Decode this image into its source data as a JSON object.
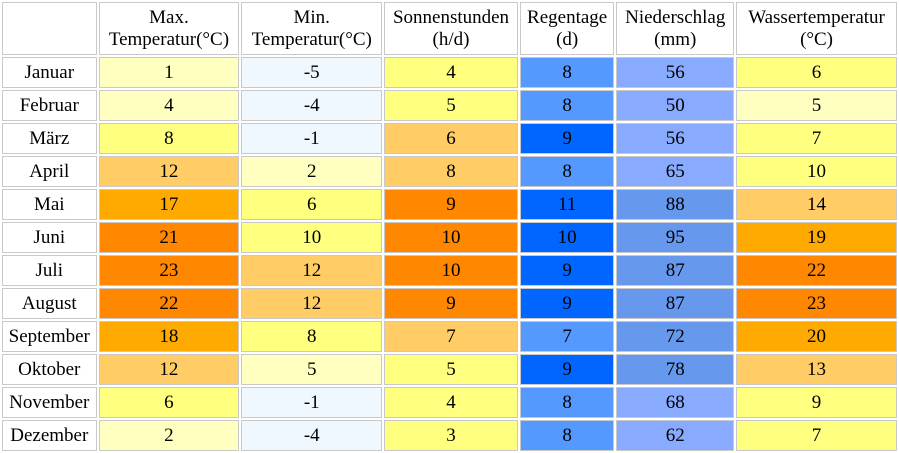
{
  "headers": [
    {
      "line1": "Max.",
      "line2": "Temperatur(°C)"
    },
    {
      "line1": "Min.",
      "line2": "Temperatur(°C)"
    },
    {
      "line1": "Sonnenstunden",
      "line2": "(h/d)"
    },
    {
      "line1": "Regentage",
      "line2": "(d)"
    },
    {
      "line1": "Niederschlag",
      "line2": "(mm)"
    },
    {
      "line1": "Wassertemperatur",
      "line2": "(°C)"
    }
  ],
  "rows": [
    {
      "month": "Januar",
      "values": [
        "1",
        "-5",
        "4",
        "8",
        "56",
        "6"
      ],
      "colors": [
        "#ffffc0",
        "#f0f8ff",
        "#ffff80",
        "#5599ff",
        "#88aaff",
        "#ffff80"
      ]
    },
    {
      "month": "Februar",
      "values": [
        "4",
        "-4",
        "5",
        "8",
        "50",
        "5"
      ],
      "colors": [
        "#ffffc0",
        "#f0f8ff",
        "#ffff80",
        "#5599ff",
        "#88aaff",
        "#ffffc0"
      ]
    },
    {
      "month": "März",
      "values": [
        "8",
        "-1",
        "6",
        "9",
        "56",
        "7"
      ],
      "colors": [
        "#ffff80",
        "#f0f8ff",
        "#ffcc66",
        "#0066ff",
        "#88aaff",
        "#ffff80"
      ]
    },
    {
      "month": "April",
      "values": [
        "12",
        "2",
        "8",
        "8",
        "65",
        "10"
      ],
      "colors": [
        "#ffcc66",
        "#ffffc0",
        "#ffcc66",
        "#5599ff",
        "#88aaff",
        "#ffff80"
      ]
    },
    {
      "month": "Mai",
      "values": [
        "17",
        "6",
        "9",
        "11",
        "88",
        "14"
      ],
      "colors": [
        "#ffaa00",
        "#ffff80",
        "#ff8800",
        "#0066ff",
        "#6699ee",
        "#ffcc66"
      ]
    },
    {
      "month": "Juni",
      "values": [
        "21",
        "10",
        "10",
        "10",
        "95",
        "19"
      ],
      "colors": [
        "#ff8800",
        "#ffff80",
        "#ff8800",
        "#0066ff",
        "#6699ee",
        "#ffaa00"
      ]
    },
    {
      "month": "Juli",
      "values": [
        "23",
        "12",
        "10",
        "9",
        "87",
        "22"
      ],
      "colors": [
        "#ff8800",
        "#ffcc66",
        "#ff8800",
        "#0066ff",
        "#6699ee",
        "#ff8800"
      ]
    },
    {
      "month": "August",
      "values": [
        "22",
        "12",
        "9",
        "9",
        "87",
        "23"
      ],
      "colors": [
        "#ff8800",
        "#ffcc66",
        "#ff8800",
        "#0066ff",
        "#6699ee",
        "#ff8800"
      ]
    },
    {
      "month": "September",
      "values": [
        "18",
        "8",
        "7",
        "7",
        "72",
        "20"
      ],
      "colors": [
        "#ffaa00",
        "#ffff80",
        "#ffcc66",
        "#5599ff",
        "#6699ee",
        "#ffaa00"
      ]
    },
    {
      "month": "Oktober",
      "values": [
        "12",
        "5",
        "5",
        "9",
        "78",
        "13"
      ],
      "colors": [
        "#ffcc66",
        "#ffffc0",
        "#ffff80",
        "#0066ff",
        "#6699ee",
        "#ffcc66"
      ]
    },
    {
      "month": "November",
      "values": [
        "6",
        "-1",
        "4",
        "8",
        "68",
        "9"
      ],
      "colors": [
        "#ffff80",
        "#f0f8ff",
        "#ffff80",
        "#5599ff",
        "#88aaff",
        "#ffff80"
      ]
    },
    {
      "month": "Dezember",
      "values": [
        "2",
        "-4",
        "3",
        "8",
        "62",
        "7"
      ],
      "colors": [
        "#ffffc0",
        "#f0f8ff",
        "#ffff80",
        "#5599ff",
        "#88aaff",
        "#ffff80"
      ]
    }
  ]
}
